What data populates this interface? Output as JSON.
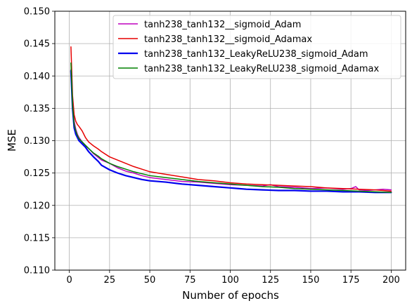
{
  "chart_data": {
    "type": "line",
    "title": "",
    "xlabel": "Number of epochs",
    "ylabel": "MSE",
    "xlim": [
      -9,
      209
    ],
    "ylim": [
      0.11,
      0.15
    ],
    "xticks": [
      0,
      25,
      50,
      75,
      100,
      125,
      150,
      175,
      200
    ],
    "yticks": [
      0.11,
      0.115,
      0.12,
      0.125,
      0.13,
      0.135,
      0.14,
      0.145,
      0.15
    ],
    "xtick_labels": [
      "0",
      "25",
      "50",
      "75",
      "100",
      "125",
      "150",
      "175",
      "200"
    ],
    "ytick_labels": [
      "0.110",
      "0.115",
      "0.120",
      "0.125",
      "0.130",
      "0.135",
      "0.140",
      "0.145",
      "0.150"
    ],
    "grid": true,
    "legend_position": "top-right",
    "series": [
      {
        "name": "tanh238_tanh132__sigmoid_Adam",
        "color": "#bf00bf",
        "width": 1.5,
        "x": [
          1,
          2,
          3,
          4,
          5,
          6,
          8,
          10,
          12,
          15,
          18,
          20,
          25,
          30,
          35,
          40,
          45,
          50,
          60,
          70,
          80,
          90,
          100,
          110,
          120,
          125,
          130,
          140,
          150,
          160,
          170,
          175,
          178,
          180,
          185,
          190,
          195,
          200
        ],
        "y": [
          0.141,
          0.136,
          0.133,
          0.1318,
          0.131,
          0.1305,
          0.1298,
          0.1292,
          0.1288,
          0.128,
          0.1274,
          0.127,
          0.1265,
          0.1258,
          0.1253,
          0.125,
          0.1246,
          0.1243,
          0.124,
          0.1237,
          0.1236,
          0.1234,
          0.1232,
          0.1231,
          0.123,
          0.1232,
          0.1229,
          0.1228,
          0.1226,
          0.1227,
          0.1225,
          0.1226,
          0.1229,
          0.1224,
          0.1223,
          0.1224,
          0.1225,
          0.1224
        ]
      },
      {
        "name": "tanh238_tanh132__sigmoid_Adamax",
        "color": "#e60000",
        "width": 1.5,
        "x": [
          1,
          2,
          3,
          4,
          5,
          6,
          8,
          10,
          12,
          15,
          18,
          20,
          25,
          30,
          35,
          40,
          45,
          50,
          60,
          70,
          80,
          90,
          100,
          110,
          120,
          130,
          140,
          150,
          160,
          170,
          180,
          190,
          195,
          200
        ],
        "y": [
          0.1445,
          0.137,
          0.134,
          0.133,
          0.1325,
          0.1322,
          0.1315,
          0.1305,
          0.1298,
          0.1292,
          0.1287,
          0.1283,
          0.1275,
          0.127,
          0.1265,
          0.126,
          0.1256,
          0.1252,
          0.1248,
          0.1244,
          0.124,
          0.1238,
          0.1235,
          0.1233,
          0.1232,
          0.1231,
          0.123,
          0.1229,
          0.1227,
          0.1226,
          0.1225,
          0.1224,
          0.1223,
          0.1222
        ]
      },
      {
        "name": "tanh238_tanh132_LeakyReLU238_sigmoid_Adam",
        "color": "#0000ee",
        "width": 2.2,
        "x": [
          1,
          2,
          3,
          4,
          5,
          6,
          8,
          10,
          12,
          15,
          18,
          20,
          25,
          30,
          35,
          40,
          45,
          50,
          60,
          70,
          80,
          90,
          100,
          105,
          110,
          120,
          130,
          140,
          150,
          160,
          170,
          180,
          190,
          200
        ],
        "y": [
          0.1408,
          0.135,
          0.132,
          0.131,
          0.1305,
          0.13,
          0.1295,
          0.129,
          0.1283,
          0.1275,
          0.1268,
          0.1262,
          0.1255,
          0.125,
          0.1246,
          0.1243,
          0.124,
          0.1238,
          0.1236,
          0.1233,
          0.1231,
          0.1229,
          0.1227,
          0.1226,
          0.1225,
          0.1224,
          0.1223,
          0.1223,
          0.1222,
          0.1222,
          0.1221,
          0.1221,
          0.122,
          0.122
        ]
      },
      {
        "name": "tanh238_tanh132_LeakyReLU238_sigmoid_Adamax",
        "color": "#008000",
        "width": 1.5,
        "x": [
          1,
          2,
          3,
          4,
          5,
          6,
          8,
          10,
          12,
          15,
          18,
          20,
          25,
          30,
          35,
          40,
          45,
          50,
          60,
          70,
          80,
          90,
          100,
          110,
          120,
          130,
          140,
          150,
          160,
          170,
          180,
          190,
          200
        ],
        "y": [
          0.142,
          0.1355,
          0.1325,
          0.1315,
          0.1308,
          0.1303,
          0.1298,
          0.1293,
          0.1288,
          0.1281,
          0.1276,
          0.1272,
          0.1265,
          0.126,
          0.1256,
          0.1252,
          0.1249,
          0.1246,
          0.1243,
          0.124,
          0.1237,
          0.1235,
          0.1233,
          0.1231,
          0.1229,
          0.1228,
          0.1226,
          0.1225,
          0.1224,
          0.1223,
          0.1222,
          0.1221,
          0.122
        ]
      }
    ]
  }
}
